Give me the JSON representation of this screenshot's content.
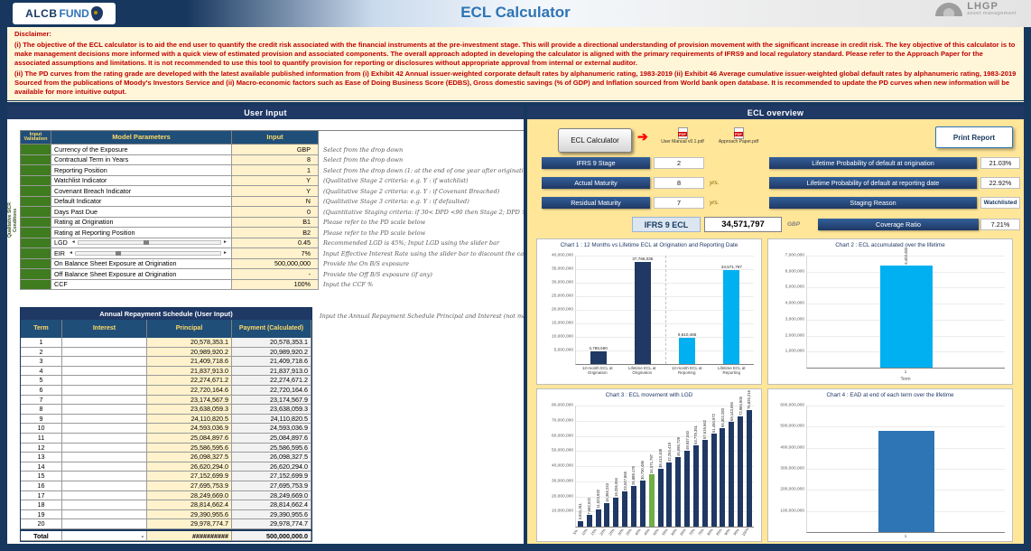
{
  "header": {
    "title": "ECL Calculator",
    "logo_left": {
      "text1": "ALCB",
      "text2": "FUND"
    },
    "logo_right": {
      "text1": "LHGP",
      "text2": "asset management"
    }
  },
  "disclaimer": {
    "heading": "Disclaimer:",
    "para1": "(i) The objective of the ECL calculator is to aid the end user to quantify the credit risk associated with the financial instruments at the pre-investment stage. This will provide a directional understanding of provision movement with the significant increase in credit risk. The key objective of this calculator is to make management decisions more informed with a quick view of estimated provision and associated components. The overall approach adopted in developing the calculator is aligned with the primary requirements of IFRS9 and local regulatory standard. Please refer to the Approach Paper for the associated assumptions and limitations. It is not recommended to use this tool to quantify provision for reporting or disclosures without appropriate approval from internal or external auditor.",
    "para2": "(ii) The PD curves from the rating grade are developed with the latest available published information from (i) Exhibit 42 Annual issuer-weighted corporate default rates by alphanumeric rating, 1983-2019 (ii) Exhibit 46 Average cumulative issuer-weighted global default rates by alphanumeric rating, 1983-2019 Sourced from the publications of Moody's Investors Service and (ii) Macro-economic factors such as Ease of Doing Business Score (EDBS), Gross domestic savings (% of GDP) and Inflation sourced from World bank open database.  It is recommended to update the PD curves when new information will be available for more intuitive output."
  },
  "left_panel": {
    "title": "User Input",
    "table_headers": {
      "validation": "Input Validation",
      "parameter": "Model Parameters",
      "input": "Input"
    },
    "sicr_label": "Qualitative SICR Conditions",
    "parameters": [
      {
        "name": "Currency of the Exposure",
        "value": "GBP",
        "note": "Select from the drop down"
      },
      {
        "name": "Contractual Term in Years",
        "value": "8",
        "note": "Select from the drop down"
      },
      {
        "name": "Reporting Position",
        "value": "1",
        "note": "Select from the drop down (1: at the end of one year after origination...)"
      },
      {
        "name": "Watchlist Indicator",
        "value": "Y",
        "note": "(Qualitative Stage 2 criteria: e.g. Y : if watchlist)"
      },
      {
        "name": "Covenant Breach Indicator",
        "value": "Y",
        "note": "(Qualitative Stage 2 criteria: e.g. Y : if Covenant Breached)"
      },
      {
        "name": "Default Indicator",
        "value": "N",
        "note": "(Qualitative Stage 3 criteria: e.g. Y : if defaulted)"
      },
      {
        "name": "Days Past Due",
        "value": "0",
        "note": "(Quantitative Staging criteria: if 30< DPD <90 then Stage 2; DPD >= 90, Stage 3)"
      },
      {
        "name": "Rating at Origination",
        "value": "B1",
        "note": "Please refer to the PD scale below"
      },
      {
        "name": "Rating at Reporting Position",
        "value": "B2",
        "note": "Please refer to the PD scale below"
      },
      {
        "name": "LGD",
        "value": "0.45",
        "note": "Recommended LGD is 45%; Input LGD using the slider bar",
        "slider": 0.5
      },
      {
        "name": "EIR",
        "value": "7%",
        "note": "Input Effective Interest Rate using the slider bar to discount the cash flow",
        "slider": 0.3
      },
      {
        "name": "On Balance Sheet Exposure at Origination",
        "value": "500,000,000",
        "note": "Provide the On B/S exposure"
      },
      {
        "name": "Off Balance Sheet Exposure at Origination",
        "value": "-",
        "note": "Provide the Off B/S exposure (if any)"
      },
      {
        "name": "CCF",
        "value": "100%",
        "note": "Input the CCF %"
      }
    ],
    "schedule": {
      "title": "Annual Repayment Schedule (User Input)",
      "columns": [
        "Term",
        "Interest",
        "Principal",
        "Payment (Calculated)"
      ],
      "note": "Input the Annual Repayment Schedule Principal and Interest (not mandatory)",
      "rows": [
        [
          "1",
          "",
          "20,578,353.1",
          "20,578,353.1"
        ],
        [
          "2",
          "",
          "20,989,920.2",
          "20,989,920.2"
        ],
        [
          "3",
          "",
          "21,409,718.6",
          "21,409,718.6"
        ],
        [
          "4",
          "",
          "21,837,913.0",
          "21,837,913.0"
        ],
        [
          "5",
          "",
          "22,274,671.2",
          "22,274,671.2"
        ],
        [
          "6",
          "",
          "22,720,164.6",
          "22,720,164.6"
        ],
        [
          "7",
          "",
          "23,174,567.9",
          "23,174,567.9"
        ],
        [
          "8",
          "",
          "23,638,059.3",
          "23,638,059.3"
        ],
        [
          "9",
          "",
          "24,110,820.5",
          "24,110,820.5"
        ],
        [
          "10",
          "",
          "24,593,036.9",
          "24,593,036.9"
        ],
        [
          "11",
          "",
          "25,084,897.6",
          "25,084,897.6"
        ],
        [
          "12",
          "",
          "25,586,595.6",
          "25,586,595.6"
        ],
        [
          "13",
          "",
          "26,098,327.5",
          "26,098,327.5"
        ],
        [
          "14",
          "",
          "26,620,294.0",
          "26,620,294.0"
        ],
        [
          "15",
          "",
          "27,152,699.9",
          "27,152,699.9"
        ],
        [
          "16",
          "",
          "27,695,753.9",
          "27,695,753.9"
        ],
        [
          "17",
          "",
          "28,249,669.0",
          "28,249,669.0"
        ],
        [
          "18",
          "",
          "28,814,662.4",
          "28,814,662.4"
        ],
        [
          "19",
          "",
          "29,390,955.6",
          "29,390,955.6"
        ],
        [
          "20",
          "",
          "29,978,774.7",
          "29,978,774.7"
        ]
      ],
      "total": {
        "label": "Total",
        "interest": "-",
        "principal": "##########",
        "payment": "500,000,000.0"
      }
    }
  },
  "right_panel": {
    "title": "ECL overview",
    "ecl_calculator_button": "ECL Calculator",
    "print_report_button": "Print Report",
    "links": [
      {
        "label": "User Manual v0.1.pdf"
      },
      {
        "label": "Approach Paper.pdf"
      }
    ],
    "fields_left": [
      {
        "label": "IFRS 9 Stage",
        "value": "2",
        "suffix": ""
      },
      {
        "label": "Actual Maturity",
        "value": "8",
        "suffix": "yrs."
      },
      {
        "label": "Residual Maturity",
        "value": "7",
        "suffix": "yrs."
      }
    ],
    "fields_right": [
      {
        "label": "Lifetime Probability of default at origination",
        "value": "21.03%"
      },
      {
        "label": "Lifetime Probability of default at reporting date",
        "value": "22.92%"
      },
      {
        "label": "Staging Reason",
        "value": "Watchlisted"
      }
    ],
    "ecl_row": {
      "label": "IFRS 9 ECL",
      "value": "34,571,797",
      "currency": "GBP",
      "coverage_label": "Coverage Ratio",
      "coverage_value": "7.21%"
    }
  },
  "colors": {
    "header_navy": "#1F3864",
    "panel_yellow": "#FFE699",
    "input_cell_yellow": "#FFF2CC",
    "validation_green": "#3E7C1F",
    "disclaimer_red": "#C00000",
    "accent_cyan": "#00B0F0",
    "highlight_green": "#70AD47",
    "ead_blue": "#2E75B6"
  },
  "chart_data": [
    {
      "type": "bar",
      "title": "Chart 1 : 12 Months vs Lifetime ECL at Origination and Reporting Date",
      "categories": [
        "12-month ECL at Origination",
        "Lifetime ECL at Origination",
        "12-month ECL at Reporting",
        "Lifetime ECL at Reporting"
      ],
      "values": [
        4786550,
        37766035,
        9610465,
        34571797
      ],
      "labels": [
        "4,786,550",
        "37,766,035",
        "9,610,465",
        "34,571,797"
      ],
      "colors": [
        "#1F3864",
        "#1F3864",
        "#00B0F0",
        "#00B0F0"
      ],
      "ylim": [
        0,
        40000000
      ],
      "yticks": [
        "40,000,000",
        "35,000,000",
        "30,000,000",
        "25,000,000",
        "20,000,000",
        "15,000,000",
        "10,000,000",
        "5,000,000"
      ],
      "grid": true,
      "legend": false
    },
    {
      "type": "bar",
      "title": "Chart 2 : ECL accumulated over the lifetime",
      "categories": [
        "1"
      ],
      "values": [
        6403483
      ],
      "labels": [
        "6,403,483"
      ],
      "bar_color": "#00B0F0",
      "xlabel": "Term",
      "ylim": [
        0,
        7000000
      ],
      "yticks": [
        "7,000,000",
        "6,000,000",
        "5,000,000",
        "4,000,000",
        "3,000,000",
        "2,000,000",
        "1,000,000"
      ],
      "grid": true,
      "legend": false
    },
    {
      "type": "bar",
      "title": "Chart 3 : ECL movement with LGD",
      "categories": [
        "5%",
        "10%",
        "15%",
        "20%",
        "25%",
        "30%",
        "35%",
        "40%",
        "45%",
        "50%",
        "55%",
        "60%",
        "65%",
        "70%",
        "75%",
        "80%",
        "85%",
        "90%",
        "95%",
        "100%"
      ],
      "values": [
        3841311,
        7682622,
        11523932,
        15365243,
        19206554,
        23047865,
        26889175,
        30730486,
        34571797,
        38413108,
        42254419,
        46095729,
        49937040,
        53778351,
        57619662,
        61460972,
        65302283,
        69143594,
        72984905,
        76826216
      ],
      "labels": [
        "3,841,311",
        "7,682,622",
        "11,523,932",
        "15,365,243",
        "19,206,554",
        "23,047,865",
        "26,889,175",
        "30,730,486",
        "34,571,797",
        "38,413,108",
        "42,254,419",
        "46,095,729",
        "49,937,040",
        "53,778,351",
        "57,619,662",
        "61,460,972",
        "65,302,283",
        "69,143,594",
        "72,984,905",
        "76,826,216"
      ],
      "bar_color": "#1F3864",
      "highlight_index": 8,
      "highlight_color": "#70AD47",
      "ylim": [
        0,
        80000000
      ],
      "yticks": [
        "80,000,000",
        "70,000,000",
        "60,000,000",
        "50,000,000",
        "40,000,000",
        "30,000,000",
        "20,000,000",
        "10,000,000"
      ],
      "grid": true,
      "legend": false
    },
    {
      "type": "bar",
      "title": "Chart 4 : EAD at end of each term over the lifetime",
      "categories": [
        "1"
      ],
      "values": [
        479421647
      ],
      "bar_color": "#2E75B6",
      "ylim": [
        0,
        600000000
      ],
      "yticks": [
        "600,000,000",
        "500,000,000",
        "400,000,000",
        "300,000,000",
        "200,000,000",
        "100,000,000"
      ],
      "grid": true,
      "legend": false
    }
  ]
}
